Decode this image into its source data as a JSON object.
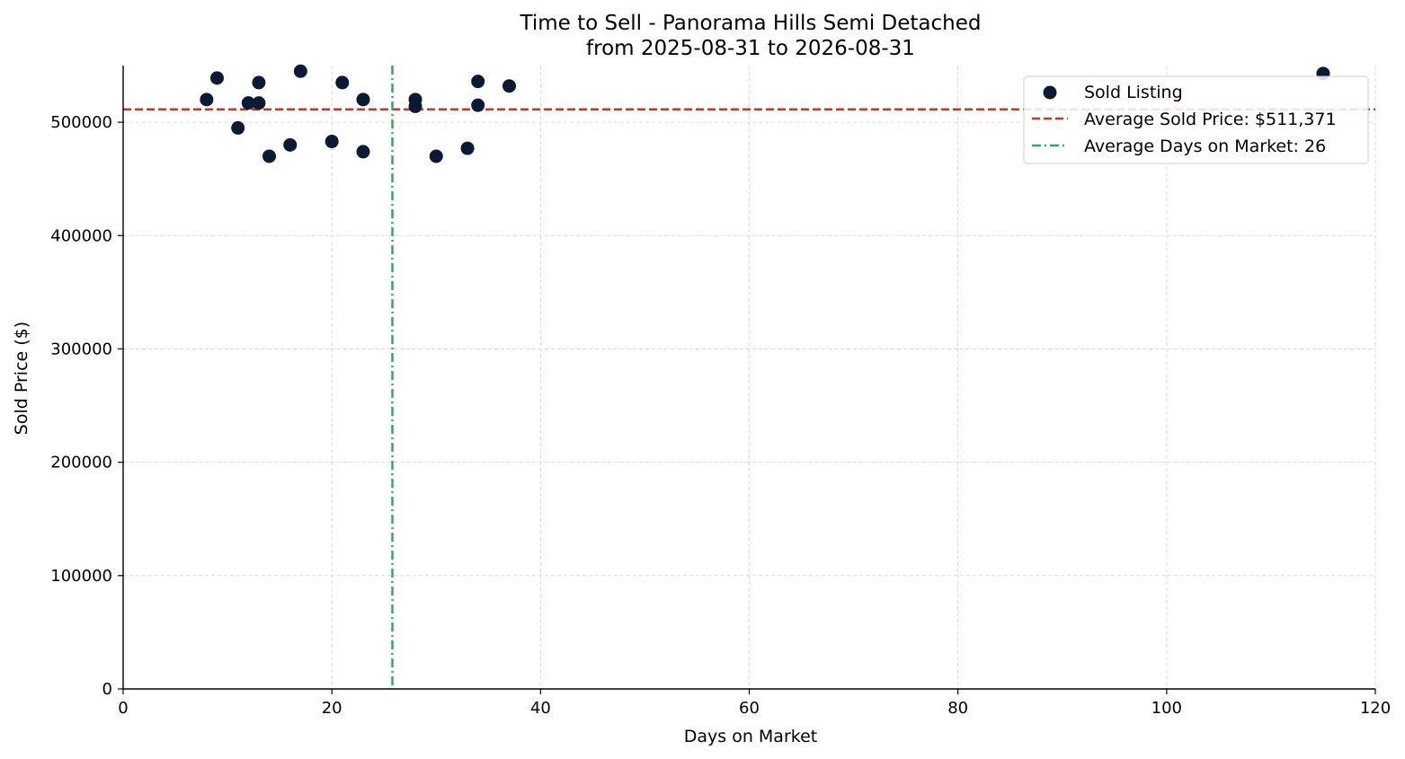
{
  "chart_data": {
    "type": "scatter",
    "title": "Time to Sell - Panorama Hills Semi Detached",
    "subtitle": "from 2025-08-31 to 2026-08-31",
    "xlabel": "Days on Market",
    "ylabel": "Sold Price ($)",
    "xlim": [
      0,
      120
    ],
    "ylim": [
      0,
      550000
    ],
    "xticks": [
      0,
      20,
      40,
      60,
      80,
      100,
      120
    ],
    "yticks": [
      0,
      100000,
      200000,
      300000,
      400000,
      500000
    ],
    "xtick_labels": [
      "0",
      "20",
      "40",
      "60",
      "80",
      "100",
      "120"
    ],
    "ytick_labels": [
      "0",
      "100000",
      "200000",
      "300000",
      "400000",
      "500000"
    ],
    "grid": true,
    "legend_position": "top-right",
    "series": [
      {
        "name": "Sold Listing",
        "color": "#0b1a33",
        "points": [
          {
            "x": 8,
            "y": 520000
          },
          {
            "x": 9,
            "y": 539000
          },
          {
            "x": 11,
            "y": 495000
          },
          {
            "x": 12,
            "y": 517000
          },
          {
            "x": 13,
            "y": 517000
          },
          {
            "x": 13,
            "y": 535000
          },
          {
            "x": 14,
            "y": 470000
          },
          {
            "x": 16,
            "y": 480000
          },
          {
            "x": 17,
            "y": 545000
          },
          {
            "x": 20,
            "y": 483000
          },
          {
            "x": 21,
            "y": 535000
          },
          {
            "x": 23,
            "y": 474000
          },
          {
            "x": 23,
            "y": 520000
          },
          {
            "x": 28,
            "y": 520000
          },
          {
            "x": 28,
            "y": 514000
          },
          {
            "x": 30,
            "y": 470000
          },
          {
            "x": 33,
            "y": 477000
          },
          {
            "x": 34,
            "y": 536000
          },
          {
            "x": 34,
            "y": 515000
          },
          {
            "x": 37,
            "y": 532000
          },
          {
            "x": 115,
            "y": 543000
          }
        ]
      }
    ],
    "reference_lines": [
      {
        "name": "Average Sold Price: $511,371",
        "orientation": "horizontal",
        "value": 511371,
        "color": "#c0392b",
        "style": "dashed"
      },
      {
        "name": "Average Days on Market: 26",
        "orientation": "vertical",
        "value": 25.8,
        "color": "#27ae60",
        "style": "dashdot"
      }
    ]
  }
}
